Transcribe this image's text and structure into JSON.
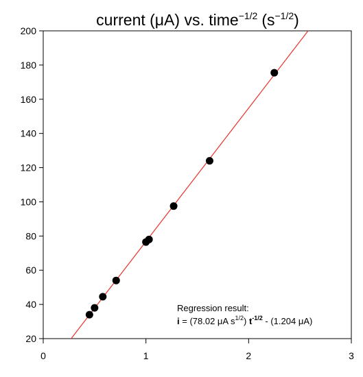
{
  "chart_data": {
    "type": "scatter",
    "title": {
      "main": "current (μA) vs. time",
      "time_exponent": "−1/2",
      "unit_open": "(s",
      "unit_exponent": "−1/2",
      "unit_close": ")"
    },
    "xlabel": "",
    "ylabel": "",
    "xlim": [
      0,
      3
    ],
    "ylim": [
      20,
      200
    ],
    "x_ticks": [
      0,
      1,
      2,
      3
    ],
    "y_ticks": [
      20,
      40,
      60,
      80,
      100,
      120,
      140,
      160,
      180,
      200
    ],
    "grid": false,
    "points": [
      {
        "x": 0.45,
        "y": 34
      },
      {
        "x": 0.5,
        "y": 38
      },
      {
        "x": 0.58,
        "y": 44.5
      },
      {
        "x": 0.71,
        "y": 54
      },
      {
        "x": 1.0,
        "y": 76.5
      },
      {
        "x": 1.03,
        "y": 78
      },
      {
        "x": 1.27,
        "y": 97.5
      },
      {
        "x": 1.62,
        "y": 124
      },
      {
        "x": 2.25,
        "y": 175.5
      }
    ],
    "regression": {
      "slope": 78.02,
      "intercept": -1.204,
      "color": "#e8322b"
    },
    "point_color": "#000000",
    "annotation": {
      "heading": "Regression result:",
      "i_label": "i",
      "eq_part1": " = (78.02  μA s",
      "sup1": "1/2",
      "eq_part2": ") ",
      "t_label": "t",
      "sup2": "-1/2",
      "eq_part3": " - (1.204 μA)"
    }
  }
}
